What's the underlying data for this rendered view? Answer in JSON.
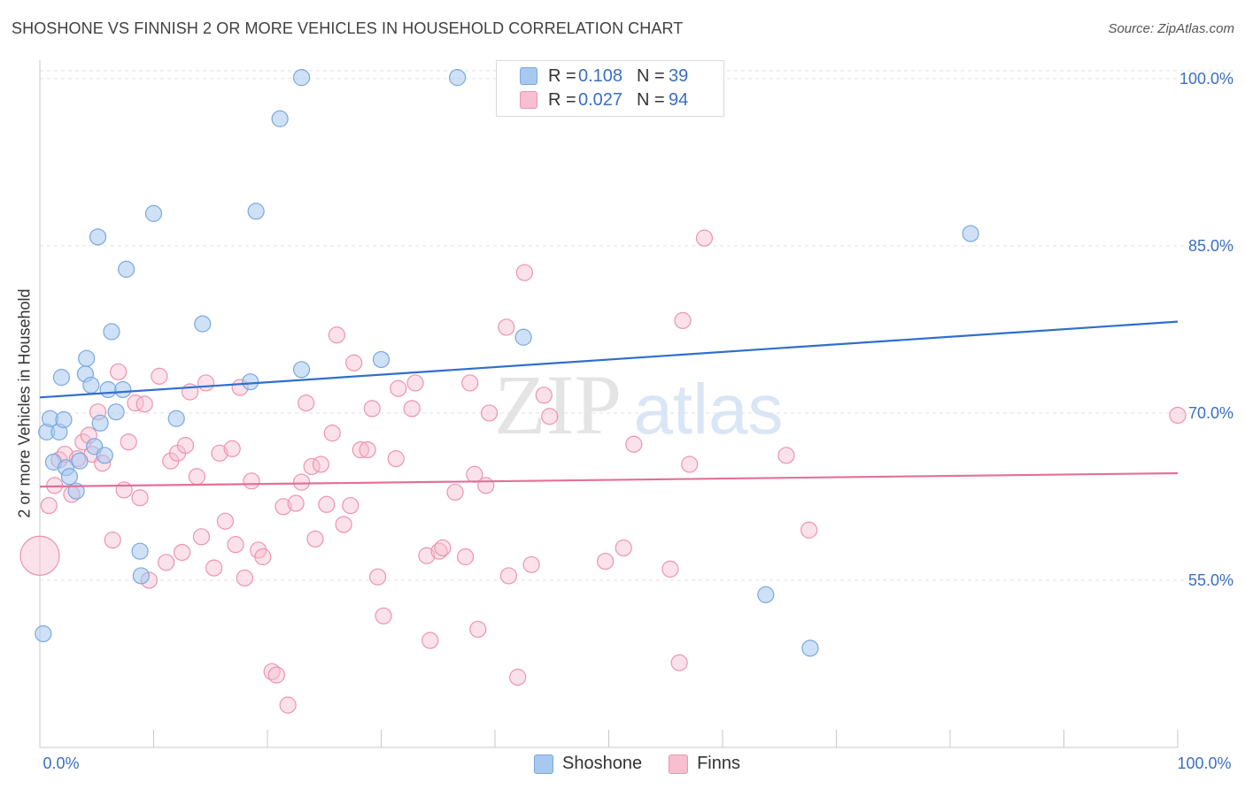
{
  "title": "SHOSHONE VS FINNISH 2 OR MORE VEHICLES IN HOUSEHOLD CORRELATION CHART",
  "source": "Source: ZipAtlas.com",
  "watermark": {
    "zip": "ZIP",
    "atlas": "atlas"
  },
  "legend": {
    "r_label": "R =",
    "n_label": "N =",
    "rows": [
      {
        "r": "0.108",
        "n": "39",
        "color": "#a8c8ef",
        "stroke": "#7aa8e0"
      },
      {
        "r": "0.027",
        "n": "94",
        "color": "#f7bfd0",
        "stroke": "#ee93af"
      }
    ]
  },
  "bottom_legend": [
    {
      "label": "Shoshone",
      "color": "#a8c8ef",
      "stroke": "#7aa8e0"
    },
    {
      "label": "Finns",
      "color": "#f7bfd0",
      "stroke": "#ee93af"
    }
  ],
  "chart_data": {
    "type": "scatter",
    "ylabel": "2 or more Vehicles in Household",
    "xlabel": "",
    "xlim": [
      0,
      100
    ],
    "ylim": [
      40,
      101.5
    ],
    "x_tick_labels": [
      "0.0%",
      "100.0%"
    ],
    "y_ticks": [
      55,
      70,
      85,
      100
    ],
    "y_tick_labels": [
      "55.0%",
      "70.0%",
      "85.0%",
      "100.0%"
    ],
    "grid": true,
    "legend_position": "top-center",
    "colors": {
      "shoshone_line": "#2f6fcc",
      "finns_line": "#e3709a"
    },
    "series": [
      {
        "name": "Shoshone",
        "trend": [
          [
            0,
            71.4
          ],
          [
            100,
            78.2
          ]
        ],
        "points": [
          [
            0.3,
            50.2
          ],
          [
            0.6,
            68.3
          ],
          [
            0.9,
            69.5
          ],
          [
            1.2,
            65.6
          ],
          [
            1.7,
            68.3
          ],
          [
            1.9,
            73.2
          ],
          [
            2.1,
            69.4
          ],
          [
            2.3,
            65.1
          ],
          [
            2.6,
            64.3
          ],
          [
            3.2,
            63.0
          ],
          [
            3.5,
            65.7
          ],
          [
            4.0,
            73.5
          ],
          [
            4.1,
            74.9
          ],
          [
            4.5,
            72.5
          ],
          [
            4.8,
            67.0
          ],
          [
            5.1,
            85.8
          ],
          [
            5.3,
            69.1
          ],
          [
            5.7,
            66.2
          ],
          [
            6.0,
            72.1
          ],
          [
            6.3,
            77.3
          ],
          [
            6.7,
            70.1
          ],
          [
            7.3,
            72.1
          ],
          [
            7.6,
            82.9
          ],
          [
            8.8,
            57.6
          ],
          [
            8.9,
            55.4
          ],
          [
            10.0,
            87.9
          ],
          [
            12.0,
            69.5
          ],
          [
            14.3,
            78.0
          ],
          [
            18.5,
            72.8
          ],
          [
            19.0,
            88.1
          ],
          [
            21.1,
            96.4
          ],
          [
            23.0,
            73.9
          ],
          [
            23.0,
            100.1
          ],
          [
            30.0,
            74.8
          ],
          [
            36.7,
            100.1
          ],
          [
            42.5,
            76.8
          ],
          [
            63.8,
            53.7
          ],
          [
            67.7,
            48.9
          ],
          [
            81.8,
            86.1
          ]
        ]
      },
      {
        "name": "Finns",
        "trend": [
          [
            0,
            63.4
          ],
          [
            100,
            64.6
          ]
        ],
        "points": [
          [
            0.0,
            57.2
          ],
          [
            0.8,
            61.7
          ],
          [
            1.3,
            63.5
          ],
          [
            1.7,
            65.8
          ],
          [
            2.2,
            66.3
          ],
          [
            2.8,
            62.7
          ],
          [
            3.3,
            65.9
          ],
          [
            3.8,
            67.4
          ],
          [
            4.3,
            68.0
          ],
          [
            4.6,
            66.3
          ],
          [
            5.1,
            70.1
          ],
          [
            5.5,
            65.5
          ],
          [
            6.4,
            58.6
          ],
          [
            6.9,
            73.7
          ],
          [
            7.4,
            63.1
          ],
          [
            7.8,
            67.4
          ],
          [
            8.4,
            70.9
          ],
          [
            8.8,
            62.4
          ],
          [
            9.2,
            70.8
          ],
          [
            9.6,
            55.0
          ],
          [
            10.5,
            73.3
          ],
          [
            11.1,
            56.6
          ],
          [
            11.5,
            65.7
          ],
          [
            12.1,
            66.4
          ],
          [
            12.5,
            57.5
          ],
          [
            12.8,
            67.1
          ],
          [
            13.2,
            71.9
          ],
          [
            13.8,
            64.3
          ],
          [
            14.2,
            58.9
          ],
          [
            14.6,
            72.7
          ],
          [
            15.3,
            56.1
          ],
          [
            15.8,
            66.4
          ],
          [
            16.3,
            60.3
          ],
          [
            16.9,
            66.8
          ],
          [
            17.2,
            58.2
          ],
          [
            17.6,
            72.3
          ],
          [
            18.0,
            55.2
          ],
          [
            18.6,
            63.9
          ],
          [
            19.2,
            57.7
          ],
          [
            19.6,
            57.1
          ],
          [
            20.4,
            46.8
          ],
          [
            20.8,
            46.5
          ],
          [
            21.4,
            61.6
          ],
          [
            21.8,
            43.8
          ],
          [
            22.5,
            61.9
          ],
          [
            23.0,
            63.8
          ],
          [
            23.4,
            70.9
          ],
          [
            23.9,
            65.2
          ],
          [
            24.2,
            58.7
          ],
          [
            24.7,
            65.4
          ],
          [
            25.2,
            61.8
          ],
          [
            25.7,
            68.2
          ],
          [
            26.1,
            77.0
          ],
          [
            26.7,
            60.0
          ],
          [
            27.3,
            61.7
          ],
          [
            27.6,
            74.5
          ],
          [
            28.2,
            66.7
          ],
          [
            28.8,
            66.7
          ],
          [
            29.2,
            70.4
          ],
          [
            29.7,
            55.3
          ],
          [
            30.2,
            51.8
          ],
          [
            31.3,
            65.9
          ],
          [
            31.5,
            72.2
          ],
          [
            32.7,
            70.4
          ],
          [
            33.0,
            72.7
          ],
          [
            34.0,
            57.2
          ],
          [
            34.3,
            49.6
          ],
          [
            35.1,
            57.6
          ],
          [
            35.4,
            57.9
          ],
          [
            36.5,
            62.9
          ],
          [
            37.4,
            57.1
          ],
          [
            37.8,
            72.7
          ],
          [
            38.2,
            64.5
          ],
          [
            38.5,
            50.6
          ],
          [
            39.2,
            63.5
          ],
          [
            39.5,
            70.0
          ],
          [
            41.0,
            77.7
          ],
          [
            41.2,
            55.4
          ],
          [
            42.0,
            46.3
          ],
          [
            42.6,
            82.6
          ],
          [
            43.2,
            56.4
          ],
          [
            44.3,
            71.6
          ],
          [
            44.8,
            69.7
          ],
          [
            49.7,
            56.7
          ],
          [
            51.3,
            57.9
          ],
          [
            52.2,
            67.2
          ],
          [
            55.4,
            56.0
          ],
          [
            56.2,
            47.6
          ],
          [
            56.5,
            78.3
          ],
          [
            57.1,
            65.4
          ],
          [
            58.4,
            85.7
          ],
          [
            65.6,
            66.2
          ],
          [
            67.6,
            59.5
          ],
          [
            100.0,
            69.8
          ]
        ]
      }
    ]
  }
}
